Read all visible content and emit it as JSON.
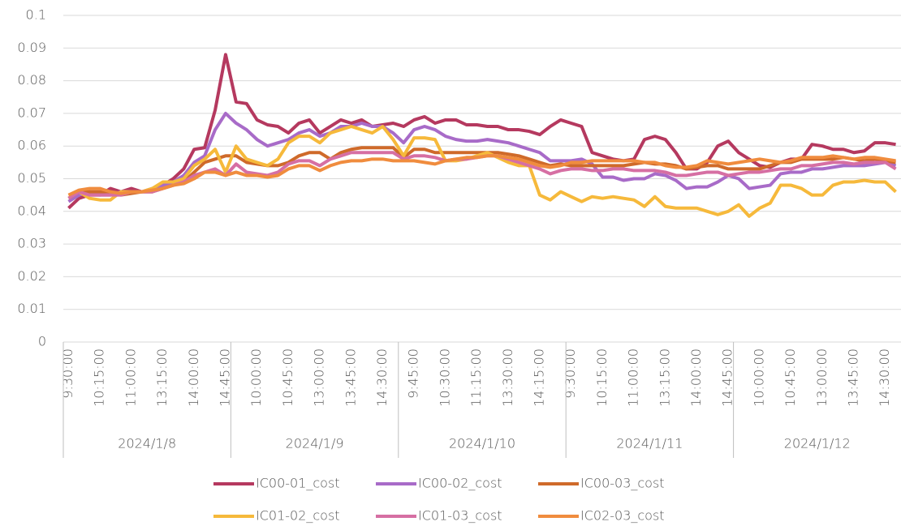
{
  "chart_data": {
    "type": "line",
    "categories": [
      "9:30:00",
      null,
      null,
      "10:15:00",
      null,
      null,
      "11:00:00",
      null,
      null,
      "13:15:00",
      null,
      null,
      "14:00:00",
      null,
      null,
      "14:45:00",
      null,
      null,
      "10:00:00",
      null,
      null,
      "10:45:00",
      null,
      null,
      "13:00:00",
      null,
      null,
      "13:45:00",
      null,
      null,
      "14:30:00",
      null,
      null,
      "9:45:00",
      null,
      null,
      "10:30:00",
      null,
      null,
      "11:15:00",
      null,
      null,
      "13:30:00",
      null,
      null,
      "14:15:00",
      null,
      null,
      "9:30:00",
      null,
      null,
      "10:15:00",
      null,
      null,
      "11:00:00",
      null,
      null,
      "13:15:00",
      null,
      null,
      "14:00:00",
      null,
      null,
      "14:45:00",
      null,
      null,
      "10:00:00",
      null,
      null,
      "10:45:00",
      null,
      null,
      "13:00:00",
      null,
      null,
      "13:45:00",
      null,
      null,
      "14:30:00",
      null
    ],
    "groups": [
      "2024/1/8",
      "2024/1/9",
      "2024/1/10",
      "2024/1/11",
      "2024/1/12"
    ],
    "series": [
      {
        "name": "IC00-01_cost",
        "color": "#b5395f",
        "values": [
          0.041,
          0.044,
          0.045,
          0.045,
          0.047,
          0.046,
          0.047,
          0.046,
          0.046,
          0.048,
          0.05,
          0.053,
          0.059,
          0.0595,
          0.071,
          0.088,
          0.0735,
          0.073,
          0.068,
          0.0665,
          0.066,
          0.064,
          0.067,
          0.068,
          0.064,
          0.066,
          0.068,
          0.067,
          0.068,
          0.066,
          0.0665,
          0.067,
          0.066,
          0.068,
          0.069,
          0.067,
          0.068,
          0.068,
          0.0665,
          0.0665,
          0.066,
          0.066,
          0.065,
          0.065,
          0.0645,
          0.0635,
          0.066,
          0.068,
          0.067,
          0.066,
          0.058,
          0.057,
          0.056,
          0.0555,
          0.056,
          0.062,
          0.063,
          0.062,
          0.058,
          0.053,
          0.053,
          0.055,
          0.06,
          0.0615,
          0.058,
          0.056,
          0.054,
          0.0535,
          0.055,
          0.056,
          0.056,
          0.0605,
          0.06,
          0.059,
          0.059,
          0.058,
          0.0585,
          0.061,
          0.061,
          0.0605
        ]
      },
      {
        "name": "IC00-02_cost",
        "color": "#a86bc8",
        "values": [
          0.043,
          0.045,
          0.046,
          0.045,
          0.045,
          0.046,
          0.046,
          0.046,
          0.047,
          0.048,
          0.049,
          0.051,
          0.055,
          0.057,
          0.065,
          0.07,
          0.067,
          0.065,
          0.062,
          0.06,
          0.061,
          0.062,
          0.064,
          0.065,
          0.063,
          0.064,
          0.066,
          0.066,
          0.067,
          0.066,
          0.066,
          0.064,
          0.061,
          0.065,
          0.066,
          0.065,
          0.063,
          0.062,
          0.0615,
          0.0615,
          0.062,
          0.0615,
          0.061,
          0.06,
          0.059,
          0.058,
          0.0555,
          0.0555,
          0.0555,
          0.056,
          0.0545,
          0.0505,
          0.0505,
          0.0495,
          0.05,
          0.05,
          0.0515,
          0.051,
          0.0495,
          0.047,
          0.0475,
          0.0475,
          0.049,
          0.051,
          0.05,
          0.047,
          0.0475,
          0.048,
          0.0515,
          0.052,
          0.052,
          0.053,
          0.053,
          0.0535,
          0.054,
          0.054,
          0.054,
          0.0545,
          0.055,
          0.054
        ]
      },
      {
        "name": "IC00-03_cost",
        "color": "#cf6a2a",
        "values": [
          0.044,
          0.046,
          0.046,
          0.046,
          0.046,
          0.045,
          0.0455,
          0.046,
          0.046,
          0.047,
          0.048,
          0.049,
          0.052,
          0.055,
          0.056,
          0.057,
          0.057,
          0.055,
          0.0545,
          0.054,
          0.054,
          0.055,
          0.057,
          0.058,
          0.058,
          0.056,
          0.058,
          0.059,
          0.0595,
          0.0595,
          0.0595,
          0.0595,
          0.0565,
          0.059,
          0.059,
          0.058,
          0.058,
          0.058,
          0.058,
          0.058,
          0.058,
          0.058,
          0.0575,
          0.057,
          0.056,
          0.055,
          0.054,
          0.0545,
          0.054,
          0.054,
          0.054,
          0.054,
          0.054,
          0.054,
          0.0545,
          0.055,
          0.0545,
          0.0545,
          0.054,
          0.053,
          0.0535,
          0.054,
          0.054,
          0.053,
          0.053,
          0.053,
          0.053,
          0.054,
          0.055,
          0.055,
          0.056,
          0.056,
          0.056,
          0.056,
          0.0565,
          0.056,
          0.0555,
          0.056,
          0.0555,
          0.055
        ]
      },
      {
        "name": "IC01-02_cost",
        "color": "#f6b93b",
        "values": [
          0.045,
          0.046,
          0.044,
          0.0435,
          0.0435,
          0.046,
          0.046,
          0.046,
          0.047,
          0.049,
          0.049,
          0.05,
          0.054,
          0.056,
          0.059,
          0.052,
          0.06,
          0.056,
          0.055,
          0.054,
          0.056,
          0.061,
          0.063,
          0.063,
          0.061,
          0.064,
          0.065,
          0.066,
          0.065,
          0.064,
          0.066,
          0.062,
          0.057,
          0.0625,
          0.0625,
          0.062,
          0.0555,
          0.0555,
          0.056,
          0.057,
          0.058,
          0.0565,
          0.055,
          0.054,
          0.054,
          0.045,
          0.0435,
          0.046,
          0.0445,
          0.043,
          0.0445,
          0.044,
          0.0445,
          0.044,
          0.0435,
          0.0415,
          0.0445,
          0.0415,
          0.041,
          0.041,
          0.041,
          0.04,
          0.039,
          0.04,
          0.042,
          0.0385,
          0.041,
          0.0425,
          0.048,
          0.048,
          0.047,
          0.045,
          0.045,
          0.048,
          0.049,
          0.049,
          0.0495,
          0.049,
          0.049,
          0.046
        ]
      },
      {
        "name": "IC01-03_cost",
        "color": "#d66fa3",
        "values": [
          0.044,
          0.046,
          0.045,
          0.045,
          0.045,
          0.045,
          0.046,
          0.046,
          0.046,
          0.047,
          0.048,
          0.049,
          0.051,
          0.052,
          0.053,
          0.051,
          0.0545,
          0.052,
          0.0515,
          0.051,
          0.052,
          0.0545,
          0.0555,
          0.0555,
          0.054,
          0.056,
          0.057,
          0.058,
          0.058,
          0.058,
          0.058,
          0.058,
          0.056,
          0.057,
          0.057,
          0.0565,
          0.0555,
          0.056,
          0.056,
          0.0565,
          0.057,
          0.057,
          0.056,
          0.055,
          0.054,
          0.053,
          0.0515,
          0.0525,
          0.053,
          0.053,
          0.0525,
          0.0525,
          0.053,
          0.053,
          0.0525,
          0.0525,
          0.0525,
          0.052,
          0.051,
          0.051,
          0.0515,
          0.052,
          0.052,
          0.051,
          0.0515,
          0.052,
          0.052,
          0.0525,
          0.053,
          0.053,
          0.054,
          0.054,
          0.0545,
          0.055,
          0.055,
          0.0545,
          0.055,
          0.055,
          0.055,
          0.053
        ]
      },
      {
        "name": "IC02-03_cost",
        "color": "#f08c3e",
        "values": [
          0.045,
          0.0465,
          0.047,
          0.047,
          0.046,
          0.0455,
          0.046,
          0.046,
          0.0465,
          0.047,
          0.048,
          0.0485,
          0.05,
          0.052,
          0.052,
          0.051,
          0.052,
          0.051,
          0.051,
          0.0505,
          0.051,
          0.053,
          0.054,
          0.054,
          0.0525,
          0.054,
          0.055,
          0.0555,
          0.0555,
          0.056,
          0.056,
          0.0555,
          0.0555,
          0.0555,
          0.055,
          0.0545,
          0.0555,
          0.056,
          0.0565,
          0.0565,
          0.057,
          0.057,
          0.0565,
          0.056,
          0.055,
          0.054,
          0.0535,
          0.054,
          0.055,
          0.055,
          0.0555,
          0.0555,
          0.0555,
          0.0555,
          0.0555,
          0.055,
          0.055,
          0.054,
          0.0535,
          0.0535,
          0.054,
          0.0555,
          0.055,
          0.0545,
          0.055,
          0.0555,
          0.056,
          0.0555,
          0.055,
          0.0555,
          0.0565,
          0.0565,
          0.0565,
          0.057,
          0.0565,
          0.056,
          0.0565,
          0.0565,
          0.056,
          0.0555
        ]
      }
    ],
    "ylim": [
      0,
      0.1
    ],
    "yticks": [
      0,
      0.01,
      0.02,
      0.03,
      0.04,
      0.05,
      0.06,
      0.07,
      0.08,
      0.09,
      0.1
    ],
    "grid": true,
    "legend": "bottom"
  }
}
